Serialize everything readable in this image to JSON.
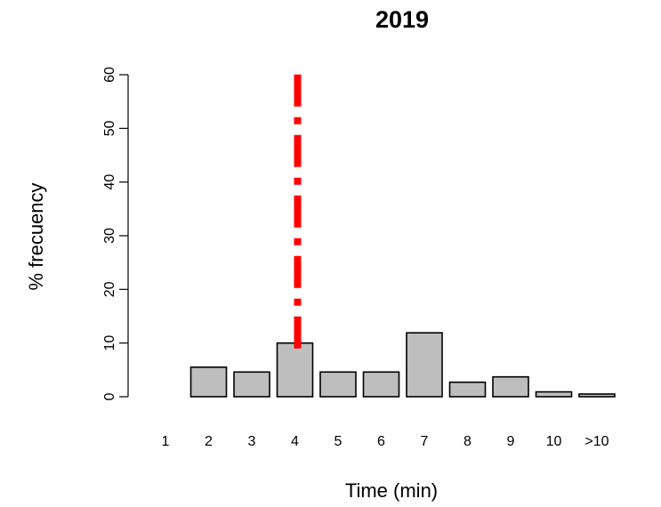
{
  "chart_data": {
    "type": "bar",
    "title": "2019",
    "xlabel": "Time (min)",
    "ylabel": "% frecuency",
    "ylim": [
      0,
      60
    ],
    "yticks": [
      0,
      10,
      20,
      30,
      40,
      50,
      60
    ],
    "bars": [
      {
        "label": "",
        "value": 0
      },
      {
        "label": "1",
        "value": 0
      },
      {
        "label": "2",
        "value": 5.5
      },
      {
        "label": "3",
        "value": 4.6
      },
      {
        "label": "4",
        "value": 10
      },
      {
        "label": "5",
        "value": 4.6
      },
      {
        "label": "6",
        "value": 4.6
      },
      {
        "label": "7",
        "value": 11.9
      },
      {
        "label": "8",
        "value": 2.7
      },
      {
        "label": "9",
        "value": 3.7
      },
      {
        "label": "10",
        "value": 0.9
      },
      {
        "label": ">10",
        "value": 0.5
      },
      {
        "label": "",
        "value": 0
      }
    ],
    "reference_line": {
      "category": "4",
      "y_from": 9,
      "y_to": 61,
      "color": "#ff0000",
      "style": "dashdot"
    },
    "grid": false,
    "bar_color": "#bebebe"
  }
}
